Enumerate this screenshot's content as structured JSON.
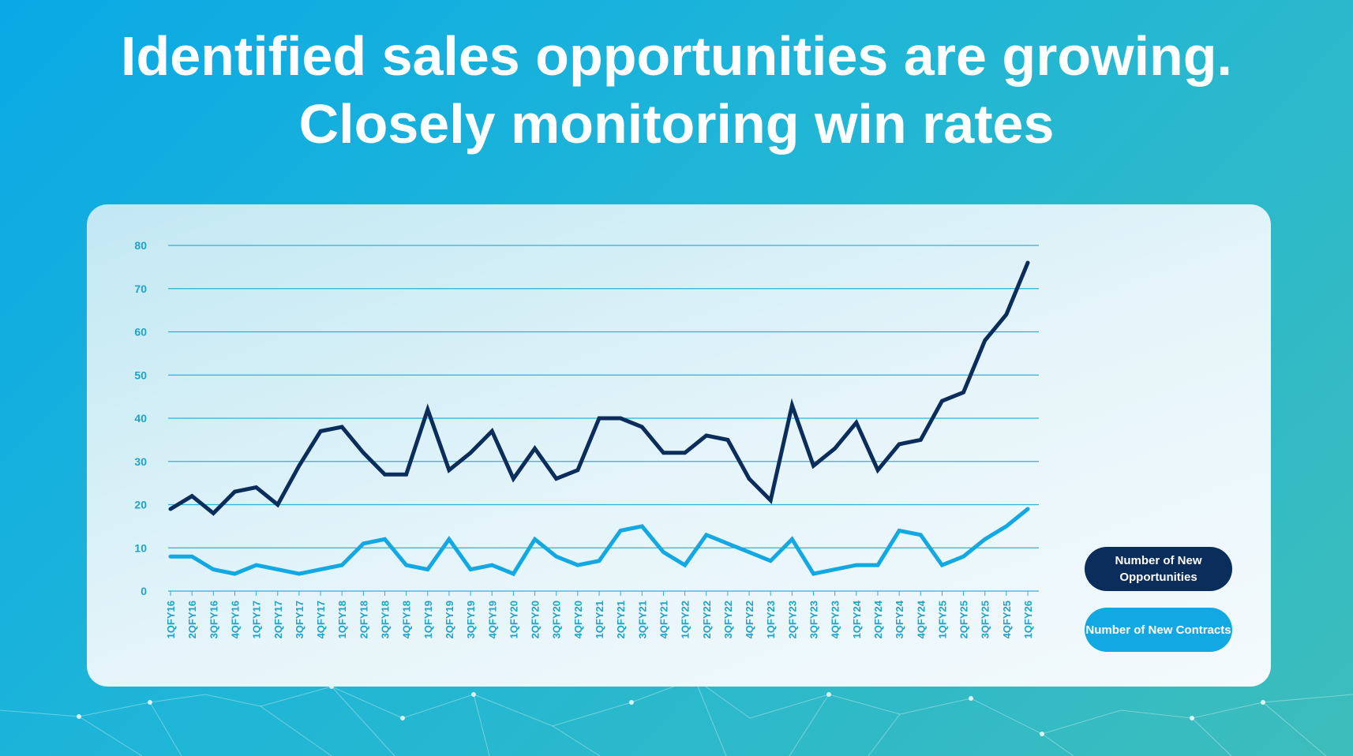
{
  "title_lines": [
    "Identified sales opportunities are growing.",
    "Closely monitoring win rates"
  ],
  "colors": {
    "opportunities": "#0b2d5c",
    "contracts": "#12a8e4",
    "grid": "#2bb3d6",
    "ticks": "#1fa3c9"
  },
  "chart_data": {
    "type": "line",
    "title": "Identified sales opportunities are growing. Closely monitoring win rates",
    "xlabel": "",
    "ylabel": "",
    "ylim": [
      0,
      80
    ],
    "yticks": [
      0,
      10,
      20,
      30,
      40,
      50,
      60,
      70,
      80
    ],
    "grid": true,
    "legend_position": "right",
    "categories": [
      "1QFY16",
      "2QFY16",
      "3QFY16",
      "4QFY16",
      "1QFY17",
      "2QFY17",
      "3QFY17",
      "4QFY17",
      "1QFY18",
      "2QFY18",
      "3QFY18",
      "4QFY18",
      "1QFY19",
      "2QFY19",
      "3QFY19",
      "4QFY19",
      "1QFY20",
      "2QFY20",
      "3QFY20",
      "4QFY20",
      "1QFY21",
      "2QFY21",
      "3QFY21",
      "4QFY21",
      "1QFY22",
      "2QFY22",
      "3QFY22",
      "4QFY22",
      "1QFY23",
      "2QFY23",
      "3QFY23",
      "4QFY23",
      "1QFY24",
      "2QFY24",
      "3QFY24",
      "4QFY24",
      "1QFY25",
      "2QFY25",
      "3QFY25",
      "4QFY25",
      "1QFY26"
    ],
    "series": [
      {
        "name": "Number of New Opportunities",
        "color": "#0b2d5c",
        "values": [
          19,
          22,
          18,
          23,
          24,
          20,
          29,
          37,
          38,
          32,
          27,
          27,
          42,
          28,
          32,
          37,
          26,
          33,
          26,
          28,
          40,
          40,
          38,
          32,
          32,
          36,
          35,
          26,
          21,
          43,
          29,
          33,
          39,
          28,
          34,
          35,
          44,
          46,
          58,
          64,
          76
        ]
      },
      {
        "name": "Number of New Contracts",
        "color": "#12a8e4",
        "values": [
          8,
          8,
          5,
          4,
          6,
          5,
          4,
          5,
          6,
          11,
          12,
          6,
          5,
          12,
          5,
          6,
          4,
          12,
          8,
          6,
          7,
          14,
          15,
          9,
          6,
          13,
          11,
          9,
          7,
          12,
          4,
          5,
          6,
          6,
          14,
          13,
          6,
          8,
          12,
          15,
          19
        ]
      }
    ]
  },
  "legend": {
    "opportunities": "Number of New Opportunities",
    "contracts": "Number of New Contracts"
  }
}
